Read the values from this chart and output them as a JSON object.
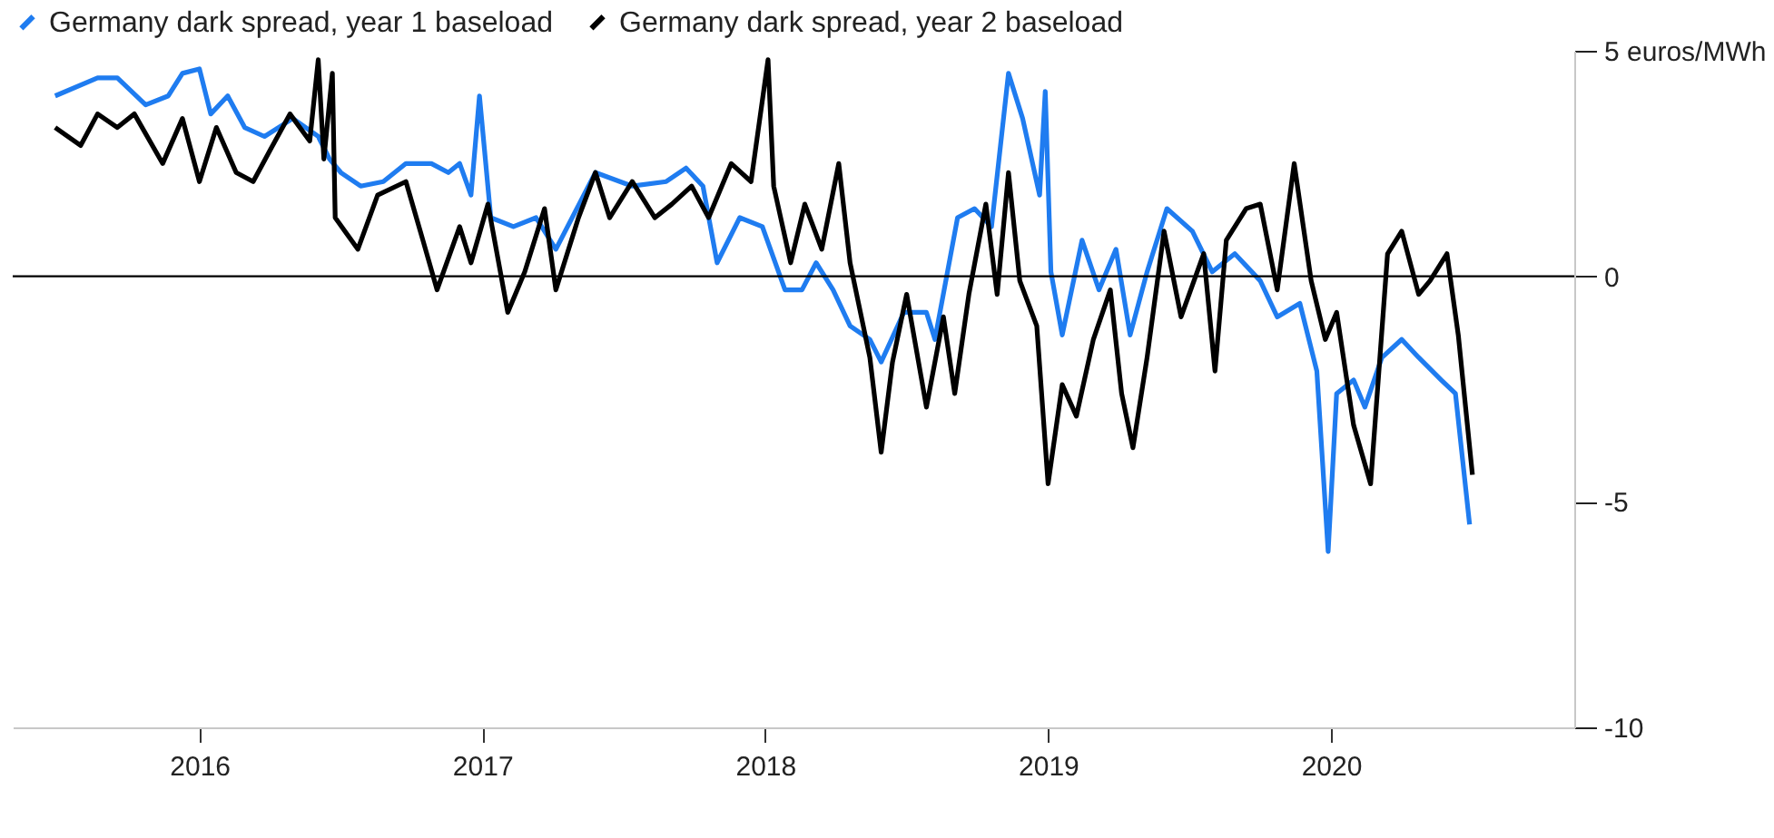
{
  "chart_data": {
    "type": "line",
    "xlim": [
      2015.34,
      2020.86
    ],
    "xticks": [
      2016,
      2017,
      2018,
      2019,
      2020
    ],
    "ylim": [
      -10,
      5
    ],
    "yticks": [
      {
        "value": 5,
        "label": "5 euros/MWh"
      },
      0,
      -5,
      -10
    ],
    "legend": "top left",
    "grid": false,
    "line_style": "solid",
    "marker": "none",
    "ref_lines": [
      {
        "axis": "y",
        "value": 0,
        "color": "#000000"
      }
    ],
    "series": [
      {
        "name": "Germany dark spread, year 1 baseload",
        "color": "#1f7cf0",
        "x": [
          2015.49,
          2015.64,
          2015.71,
          2015.81,
          2015.89,
          2015.94,
          2016.0,
          2016.04,
          2016.1,
          2016.16,
          2016.23,
          2016.33,
          2016.42,
          2016.46,
          2016.5,
          2016.57,
          2016.65,
          2016.73,
          2016.82,
          2016.88,
          2016.92,
          2016.96,
          2016.99,
          2017.03,
          2017.11,
          2017.19,
          2017.26,
          2017.4,
          2017.53,
          2017.65,
          2017.72,
          2017.78,
          2017.83,
          2017.91,
          2017.99,
          2018.07,
          2018.13,
          2018.18,
          2018.24,
          2018.3,
          2018.37,
          2018.41,
          2018.49,
          2018.57,
          2018.6,
          2018.68,
          2018.74,
          2018.8,
          2018.86,
          2018.91,
          2018.97,
          2018.99,
          2019.01,
          2019.05,
          2019.12,
          2019.18,
          2019.24,
          2019.29,
          2019.35,
          2019.42,
          2019.51,
          2019.58,
          2019.66,
          2019.75,
          2019.81,
          2019.89,
          2019.95,
          2019.99,
          2020.02,
          2020.08,
          2020.12,
          2020.18,
          2020.25,
          2020.31,
          2020.39,
          2020.44,
          2020.49
        ],
        "values": [
          4.0,
          4.4,
          4.4,
          3.8,
          4.0,
          4.5,
          4.6,
          3.6,
          4.0,
          3.3,
          3.1,
          3.5,
          3.1,
          2.6,
          2.3,
          2.0,
          2.1,
          2.5,
          2.5,
          2.3,
          2.5,
          1.8,
          4.0,
          1.3,
          1.1,
          1.3,
          0.6,
          2.3,
          2.0,
          2.1,
          2.4,
          2.0,
          0.3,
          1.3,
          1.1,
          -0.3,
          -0.3,
          0.3,
          -0.3,
          -1.1,
          -1.4,
          -1.9,
          -0.8,
          -0.8,
          -1.4,
          1.3,
          1.5,
          1.1,
          4.5,
          3.5,
          1.8,
          4.1,
          0.1,
          -1.3,
          0.8,
          -0.3,
          0.6,
          -1.3,
          0.1,
          1.5,
          1.0,
          0.1,
          0.5,
          -0.1,
          -0.9,
          -0.6,
          -2.1,
          -6.1,
          -2.6,
          -2.3,
          -2.9,
          -1.8,
          -1.4,
          -1.8,
          -2.3,
          -2.6,
          -5.5
        ]
      },
      {
        "name": "Germany dark spread, year 2 baseload",
        "color": "#000000",
        "x": [
          2015.49,
          2015.58,
          2015.64,
          2015.71,
          2015.77,
          2015.87,
          2015.94,
          2016.0,
          2016.06,
          2016.13,
          2016.19,
          2016.25,
          2016.32,
          2016.39,
          2016.42,
          2016.44,
          2016.47,
          2016.48,
          2016.56,
          2016.63,
          2016.73,
          2016.79,
          2016.84,
          2016.92,
          2016.96,
          2017.02,
          2017.09,
          2017.15,
          2017.22,
          2017.26,
          2017.34,
          2017.4,
          2017.45,
          2017.53,
          2017.61,
          2017.67,
          2017.74,
          2017.8,
          2017.88,
          2017.95,
          2018.01,
          2018.03,
          2018.09,
          2018.14,
          2018.2,
          2018.26,
          2018.3,
          2018.37,
          2018.41,
          2018.45,
          2018.5,
          2018.57,
          2018.63,
          2018.67,
          2018.72,
          2018.78,
          2018.82,
          2018.86,
          2018.9,
          2018.96,
          2019.0,
          2019.05,
          2019.1,
          2019.16,
          2019.22,
          2019.26,
          2019.3,
          2019.35,
          2019.41,
          2019.47,
          2019.55,
          2019.59,
          2019.63,
          2019.7,
          2019.75,
          2019.81,
          2019.87,
          2019.93,
          2019.98,
          2020.02,
          2020.08,
          2020.14,
          2020.2,
          2020.25,
          2020.31,
          2020.35,
          2020.41,
          2020.45,
          2020.5
        ],
        "values": [
          3.3,
          2.9,
          3.6,
          3.3,
          3.6,
          2.5,
          3.5,
          2.1,
          3.3,
          2.3,
          2.1,
          2.8,
          3.6,
          3.0,
          4.8,
          2.6,
          4.5,
          1.3,
          0.6,
          1.8,
          2.1,
          0.8,
          -0.3,
          1.1,
          0.3,
          1.6,
          -0.8,
          0.1,
          1.5,
          -0.3,
          1.3,
          2.3,
          1.3,
          2.1,
          1.3,
          1.6,
          2.0,
          1.3,
          2.5,
          2.1,
          4.8,
          2.0,
          0.3,
          1.6,
          0.6,
          2.5,
          0.3,
          -1.8,
          -3.9,
          -1.9,
          -0.4,
          -2.9,
          -0.9,
          -2.6,
          -0.4,
          1.6,
          -0.4,
          2.3,
          -0.1,
          -1.1,
          -4.6,
          -2.4,
          -3.1,
          -1.4,
          -0.3,
          -2.6,
          -3.8,
          -1.8,
          1.0,
          -0.9,
          0.5,
          -2.1,
          0.8,
          1.5,
          1.6,
          -0.3,
          2.5,
          -0.1,
          -1.4,
          -0.8,
          -3.3,
          -4.6,
          0.5,
          1.0,
          -0.4,
          -0.1,
          0.5,
          -1.3,
          -4.4
        ]
      }
    ]
  }
}
